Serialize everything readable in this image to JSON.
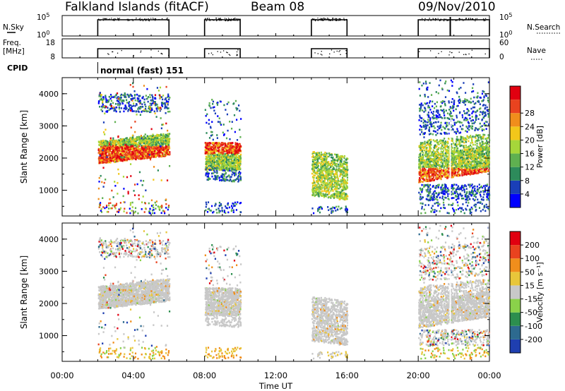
{
  "header": {
    "station": "Falkland Islands (fitACF)",
    "beam": "Beam 08",
    "date": "09/Nov/2010"
  },
  "panels": {
    "nsky": {
      "label": "N.Sky",
      "right_label": "N.Search",
      "ticks_left": [
        "10^5",
        "10^0"
      ],
      "ticks_right": [
        "10^5",
        "10^0"
      ]
    },
    "freq": {
      "label": "Freq.",
      "unit": "[MHz]",
      "ticks_left": [
        "18",
        "8"
      ],
      "right_label": "Nave",
      "ticks_right": [
        "60",
        "0"
      ]
    },
    "cpid": {
      "label": "CPID",
      "mode": "normal (fast) 151"
    }
  },
  "chart_data": [
    {
      "type": "heatmap",
      "ylabel": "Slant Range [km]",
      "ylim": [
        200,
        4500
      ],
      "yticks": [
        1000,
        2000,
        3000,
        4000
      ],
      "xlim": [
        0,
        24
      ],
      "colorbar": {
        "label": "Power [dB]",
        "ticks": [
          "4",
          "8",
          "12",
          "16",
          "20",
          "24",
          "28"
        ],
        "colors": [
          "#0000ff",
          "#1a3fb8",
          "#2d8b5b",
          "#5fb050",
          "#a6d63a",
          "#f2c71a",
          "#f08e1c",
          "#e9431f",
          "#e10010"
        ]
      }
    },
    {
      "type": "heatmap",
      "ylabel": "Slant Range [km]",
      "ylim": [
        200,
        4500
      ],
      "yticks": [
        1000,
        2000,
        3000,
        4000
      ],
      "xlim": [
        0,
        24
      ],
      "colorbar": {
        "label": "Velocity [m s⁻¹]",
        "ticks": [
          "200",
          "100",
          "50",
          "15",
          "-15",
          "-50",
          "-100",
          "-200"
        ],
        "colors": [
          "#1f3fb0",
          "#2d6a8f",
          "#2c8e4e",
          "#8ad24a",
          "#c8c8c8",
          "#e8c63a",
          "#f08e1c",
          "#e9431f",
          "#e10010"
        ]
      }
    }
  ],
  "xaxis": {
    "label": "Time UT",
    "ticks": [
      "00:00",
      "04:00",
      "08:00",
      "12:00",
      "16:00",
      "20:00",
      "00:00"
    ]
  }
}
